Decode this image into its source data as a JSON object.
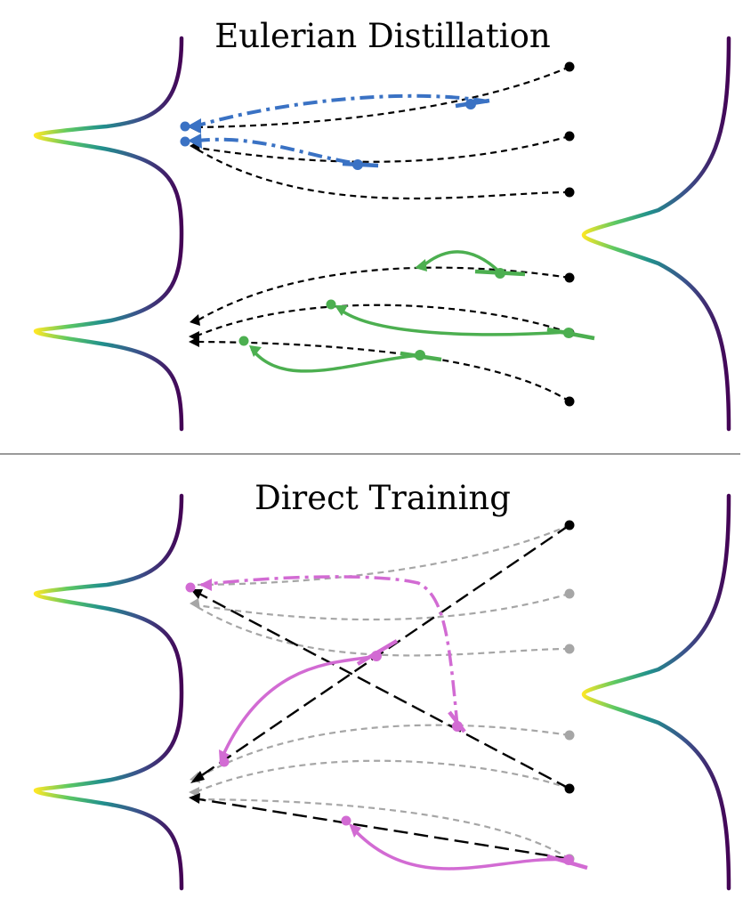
{
  "panels": [
    {
      "id": "top",
      "title": "Eulerian Distillation"
    },
    {
      "id": "bottom",
      "title": "Direct Training"
    }
  ],
  "colors": {
    "blue": "#3a72c4",
    "green": "#4caf50",
    "magenta": "#d26bd3",
    "black": "#000000",
    "gray": "#a6a6a6",
    "divider": "#9a9a9a",
    "viridis": [
      "#440154",
      "#3b528b",
      "#21918c",
      "#5ec962",
      "#fde725"
    ]
  }
}
